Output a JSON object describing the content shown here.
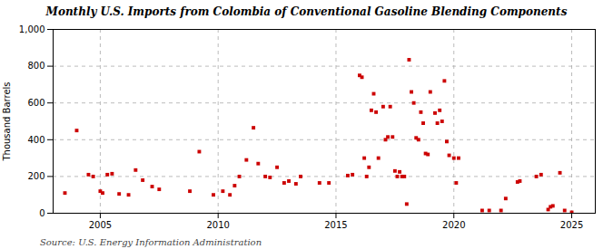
{
  "chart_data": {
    "type": "scatter",
    "title": "Monthly U.S. Imports from Colombia of Conventional Gasoline Blending Components",
    "ylabel": "Thousand Barrels",
    "source": "Source: U.S. Energy Information Administration",
    "color": "#cc0000",
    "marker": "square",
    "grid": true,
    "xlim": [
      2003.0,
      2026.0
    ],
    "ylim": [
      0,
      1000
    ],
    "xticks": [
      2005,
      2010,
      2015,
      2020,
      2025
    ],
    "yticks": [
      0,
      200,
      400,
      600,
      800,
      {
        "value": 1000,
        "label": "1,000"
      }
    ],
    "x": [
      2003.5,
      2004.0,
      2004.5,
      2004.7,
      2005.0,
      2005.1,
      2005.3,
      2005.5,
      2005.8,
      2006.2,
      2006.5,
      2006.8,
      2007.2,
      2007.5,
      2008.8,
      2009.2,
      2009.8,
      2010.2,
      2010.5,
      2010.7,
      2010.9,
      2011.2,
      2011.5,
      2011.7,
      2012.0,
      2012.2,
      2012.5,
      2012.8,
      2013.0,
      2013.3,
      2013.5,
      2014.3,
      2014.7,
      2015.5,
      2015.7,
      2016.0,
      2016.1,
      2016.2,
      2016.3,
      2016.4,
      2016.5,
      2016.6,
      2016.7,
      2016.8,
      2017.0,
      2017.1,
      2017.2,
      2017.3,
      2017.4,
      2017.5,
      2017.6,
      2017.7,
      2017.8,
      2017.9,
      2018.0,
      2018.1,
      2018.2,
      2018.3,
      2018.4,
      2018.5,
      2018.6,
      2018.7,
      2018.8,
      2018.9,
      2019.0,
      2019.2,
      2019.3,
      2019.4,
      2019.5,
      2019.6,
      2019.7,
      2019.8,
      2020.0,
      2020.1,
      2020.2,
      2021.2,
      2021.5,
      2022.0,
      2022.2,
      2022.7,
      2022.8,
      2023.5,
      2023.7,
      2024.0,
      2024.1,
      2024.2,
      2024.5,
      2024.7,
      2025.0
    ],
    "values": [
      110,
      450,
      210,
      200,
      120,
      110,
      210,
      215,
      105,
      100,
      235,
      180,
      145,
      130,
      120,
      335,
      100,
      120,
      100,
      150,
      200,
      290,
      465,
      270,
      200,
      195,
      250,
      165,
      175,
      160,
      200,
      165,
      165,
      205,
      210,
      750,
      740,
      300,
      200,
      250,
      560,
      650,
      550,
      300,
      580,
      400,
      415,
      580,
      415,
      230,
      200,
      225,
      200,
      200,
      50,
      835,
      660,
      600,
      410,
      400,
      550,
      490,
      325,
      320,
      660,
      545,
      490,
      560,
      500,
      720,
      390,
      315,
      300,
      165,
      300,
      15,
      15,
      15,
      80,
      170,
      175,
      200,
      210,
      20,
      35,
      40,
      220,
      15,
      5
    ]
  }
}
